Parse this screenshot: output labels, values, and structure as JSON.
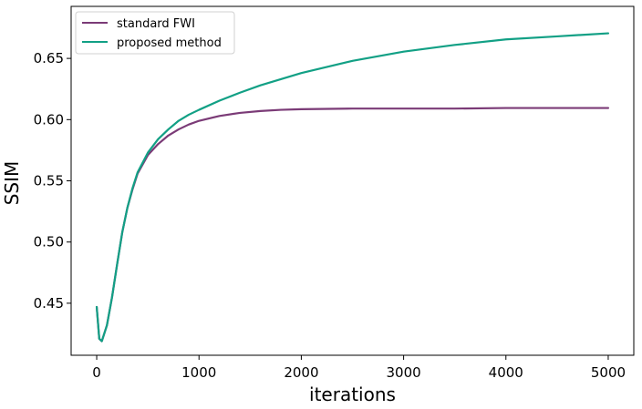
{
  "chart_data": {
    "type": "line",
    "title": "",
    "xlabel": "iterations",
    "ylabel": "SSIM",
    "xlim": [
      -250,
      5250
    ],
    "ylim": [
      0.4075,
      0.6925
    ],
    "xticks": [
      0,
      1000,
      2000,
      3000,
      4000,
      5000
    ],
    "xtick_labels": [
      "0",
      "1000",
      "2000",
      "3000",
      "4000",
      "5000"
    ],
    "yticks": [
      0.45,
      0.5,
      0.55,
      0.6,
      0.65
    ],
    "ytick_labels": [
      "0.45",
      "0.50",
      "0.55",
      "0.60",
      "0.65"
    ],
    "grid": false,
    "legend_position": "top-left",
    "series": [
      {
        "name": "standard FWI",
        "color": "#7b3b77",
        "x": [
          0,
          25,
          50,
          100,
          150,
          200,
          250,
          300,
          350,
          400,
          500,
          600,
          700,
          800,
          900,
          1000,
          1200,
          1400,
          1600,
          1800,
          2000,
          2500,
          3000,
          3500,
          4000,
          4500,
          5000
        ],
        "y": [
          0.447,
          0.421,
          0.419,
          0.432,
          0.455,
          0.482,
          0.508,
          0.528,
          0.543,
          0.556,
          0.571,
          0.58,
          0.587,
          0.592,
          0.596,
          0.599,
          0.603,
          0.6055,
          0.607,
          0.608,
          0.6085,
          0.609,
          0.609,
          0.609,
          0.6095,
          0.6095,
          0.6095
        ]
      },
      {
        "name": "proposed method",
        "color": "#12a085",
        "x": [
          0,
          25,
          50,
          100,
          150,
          200,
          250,
          300,
          350,
          400,
          500,
          600,
          700,
          800,
          900,
          1000,
          1200,
          1400,
          1600,
          1800,
          2000,
          2500,
          3000,
          3500,
          4000,
          4500,
          5000
        ],
        "y": [
          0.447,
          0.421,
          0.419,
          0.432,
          0.455,
          0.482,
          0.508,
          0.528,
          0.544,
          0.557,
          0.573,
          0.584,
          0.592,
          0.599,
          0.604,
          0.608,
          0.6155,
          0.622,
          0.628,
          0.633,
          0.638,
          0.648,
          0.6555,
          0.661,
          0.6655,
          0.668,
          0.6705
        ]
      }
    ]
  }
}
